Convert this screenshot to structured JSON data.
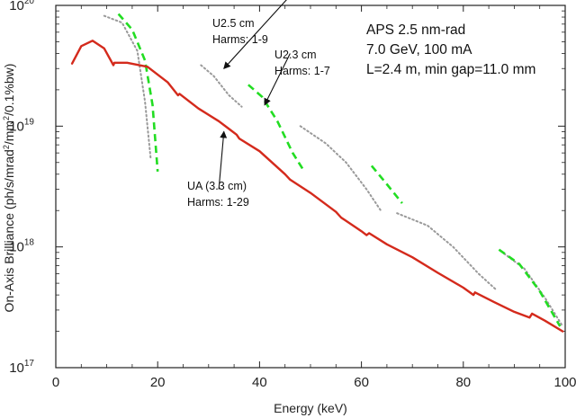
{
  "chart_data": {
    "type": "line",
    "xlabel": "Energy (keV)",
    "ylabel_parts": [
      "On-Axis Brilliance (ph/s/mrad",
      "2",
      "/mm",
      "2",
      "/0.1%bw)"
    ],
    "xlim": [
      0,
      100
    ],
    "ylim": [
      1e+17,
      1e+20
    ],
    "yscale": "log",
    "x_ticks": [
      0,
      20,
      40,
      60,
      80,
      100
    ],
    "y_ticks": [
      {
        "value": 1e+17,
        "base": "10",
        "exp": "17"
      },
      {
        "value": 1e+18,
        "base": "10",
        "exp": "18"
      },
      {
        "value": 1e+19,
        "base": "10",
        "exp": "19"
      },
      {
        "value": 1e+20,
        "base": "10",
        "exp": "20"
      }
    ],
    "info_lines": [
      "APS 2.5 nm-rad",
      "7.0 GeV, 100 mA",
      "L=2.4 m, min gap=11.0 mm"
    ],
    "annotations": [
      {
        "lines": [
          "U2.5 cm",
          "Harms: 1-9"
        ],
        "arrow_from": [
          46,
          1.2e+20
        ],
        "arrow_to": [
          33,
          3e+19
        ]
      },
      {
        "lines": [
          "U2.3 cm",
          "Harms: 1-7"
        ],
        "arrow_from": [
          46,
          4e+19
        ],
        "arrow_to": [
          41,
          1.5e+19
        ]
      },
      {
        "lines": [
          "UA (3.3 cm)",
          "Harms: 1-29"
        ],
        "arrow_from": [
          32,
          3e+18
        ],
        "arrow_to": [
          33,
          9e+18
        ]
      }
    ],
    "series": [
      {
        "color": "#d42a1c",
        "style": "solid",
        "segments": [
          [
            [
              3.2,
              3.3e+19
            ],
            [
              5,
              4.6e+19
            ],
            [
              7.2,
              5.1e+19
            ],
            [
              9.5,
              4.4e+19
            ],
            [
              11.3,
              3.2e+19
            ],
            [
              11.5,
              3.35e+19
            ],
            [
              14,
              3.35e+19
            ],
            [
              18,
              3.1e+19
            ],
            [
              22,
              2.3e+19
            ],
            [
              24,
              1.8e+19
            ],
            [
              24.3,
              1.85e+19
            ],
            [
              28,
              1.4e+19
            ],
            [
              32,
              1.1e+19
            ],
            [
              35.5,
              8.5e+18
            ],
            [
              36,
              7.9e+18
            ],
            [
              40,
              6.2e+18
            ],
            [
              45,
              4e+18
            ],
            [
              46,
              3.6e+18
            ],
            [
              50,
              2.8e+18
            ],
            [
              55,
              1.95e+18
            ],
            [
              56,
              1.75e+18
            ],
            [
              60,
              1.35e+18
            ],
            [
              61,
              1.25e+18
            ],
            [
              61.5,
              1.3e+18
            ],
            [
              65,
              1.05e+18
            ],
            [
              70,
              8.2e+17
            ],
            [
              75,
              6.1e+17
            ],
            [
              80,
              4.6e+17
            ],
            [
              82,
              4e+17
            ],
            [
              82.3,
              4.2e+17
            ],
            [
              86,
              3.5e+17
            ],
            [
              90,
              2.9e+17
            ],
            [
              93,
              2.6e+17
            ],
            [
              93.5,
              2.8e+17
            ],
            [
              96,
              2.45e+17
            ],
            [
              99.5,
              2e+17
            ]
          ]
        ]
      },
      {
        "color": "#22dd22",
        "style": "dashed",
        "segments": [
          [
            [
              12.3,
              8.5e+19
            ],
            [
              15,
              6.3e+19
            ],
            [
              17.5,
              3.5e+19
            ],
            [
              19,
              1.5e+19
            ],
            [
              20,
              4.2e+18
            ]
          ],
          [
            [
              37.8,
              2.2e+19
            ],
            [
              40.5,
              1.75e+19
            ],
            [
              43.5,
              1.1e+19
            ],
            [
              46.5,
              6e+18
            ],
            [
              48.5,
              4.4e+18
            ]
          ],
          [
            [
              62,
              4.7e+18
            ],
            [
              65,
              3.3e+18
            ],
            [
              68,
              2.3e+18
            ]
          ],
          [
            [
              87,
              9.5e+17
            ],
            [
              91,
              7.2e+17
            ],
            [
              95,
              4.3e+17
            ],
            [
              99,
              2.2e+17
            ]
          ]
        ]
      },
      {
        "color": "#9a9a9a",
        "style": "dotted",
        "segments": [
          [
            [
              9.5,
              8.2e+19
            ],
            [
              13,
              7.2e+19
            ],
            [
              16,
              4.2e+19
            ],
            [
              17.5,
              1.6e+19
            ],
            [
              18.6,
              5.5e+18
            ]
          ],
          [
            [
              28.5,
              3.2e+19
            ],
            [
              31,
              2.6e+19
            ],
            [
              34,
              1.8e+19
            ],
            [
              36.5,
              1.45e+19
            ]
          ],
          [
            [
              48,
              1e+19
            ],
            [
              53,
              7.2e+18
            ],
            [
              57,
              5e+18
            ],
            [
              61,
              3e+18
            ],
            [
              63.8,
              2e+18
            ]
          ],
          [
            [
              67,
              1.9e+18
            ],
            [
              73,
              1.5e+18
            ],
            [
              78,
              1e+18
            ],
            [
              83,
              6e+17
            ],
            [
              86.5,
              4.4e+17
            ]
          ],
          [
            [
              88,
              8.8e+17
            ],
            [
              92,
              6.6e+17
            ],
            [
              96,
              3.8e+17
            ],
            [
              99.5,
              2.2e+17
            ]
          ]
        ]
      }
    ]
  }
}
